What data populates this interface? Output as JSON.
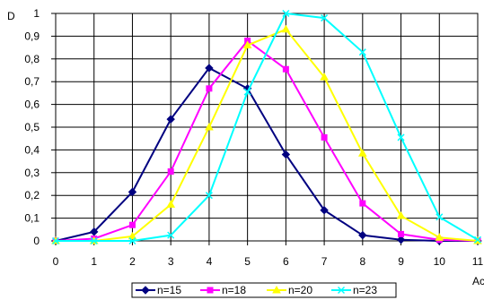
{
  "chart_data": {
    "type": "line",
    "title": "",
    "ylabel": "D",
    "xlabel": "Ac",
    "x": [
      0,
      1,
      2,
      3,
      4,
      5,
      6,
      7,
      8,
      9,
      10,
      11
    ],
    "xlim": [
      0,
      11
    ],
    "ylim": [
      0,
      1
    ],
    "x_ticks": [
      "0",
      "1",
      "2",
      "3",
      "4",
      "5",
      "6",
      "7",
      "8",
      "9",
      "10",
      "11"
    ],
    "y_ticks": [
      "0",
      "0,1",
      "0,2",
      "0,3",
      "0,4",
      "0,5",
      "0,6",
      "0,7",
      "0,8",
      "0,9",
      "1"
    ],
    "grid": true,
    "legend_position": "bottom",
    "series": [
      {
        "name": "n=15",
        "color": "#000080",
        "marker": "diamond",
        "values": [
          0.0,
          0.04,
          0.215,
          0.535,
          0.76,
          0.67,
          0.38,
          0.135,
          0.025,
          0.005,
          0.0,
          0.0
        ]
      },
      {
        "name": "n=18",
        "color": "#ff00ff",
        "marker": "square",
        "values": [
          0.0,
          0.01,
          0.07,
          0.305,
          0.67,
          0.88,
          0.755,
          0.455,
          0.165,
          0.03,
          0.005,
          0.0
        ]
      },
      {
        "name": "n=20",
        "color": "#ffff00",
        "marker": "triangle",
        "values": [
          0.0,
          0.0,
          0.02,
          0.16,
          0.5,
          0.86,
          0.93,
          0.72,
          0.385,
          0.11,
          0.015,
          0.0
        ]
      },
      {
        "name": "n=23",
        "color": "#00ffff",
        "marker": "x",
        "values": [
          0.0,
          0.0,
          0.0,
          0.025,
          0.2,
          0.655,
          1.0,
          0.98,
          0.83,
          0.455,
          0.105,
          0.005
        ]
      }
    ]
  }
}
